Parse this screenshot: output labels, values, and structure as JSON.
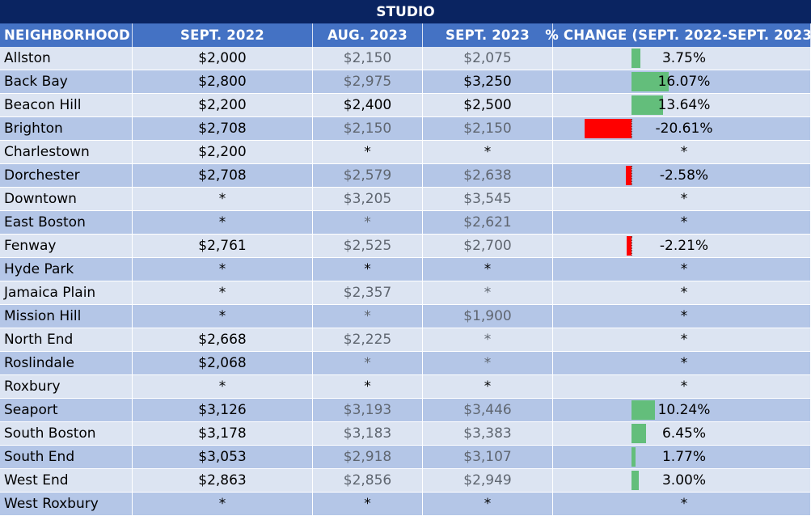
{
  "chart_data": {
    "type": "table",
    "title": "STUDIO",
    "columns": [
      "NEIGHBORHOOD",
      "SEPT. 2022",
      "AUG. 2023",
      "SEPT. 2023",
      "% CHANGE (SEPT. 2022-SEPT. 2023)"
    ],
    "rows": [
      {
        "neighborhood": "Allston",
        "sept_2022": "$2,000",
        "aug_2023": "$2,150",
        "sept_2023": "$2,075",
        "pct_change": "3.75%",
        "pct_value": 3.75,
        "aug_muted": true,
        "sept23_muted": true
      },
      {
        "neighborhood": "Back Bay",
        "sept_2022": "$2,800",
        "aug_2023": "$2,975",
        "sept_2023": "$3,250",
        "pct_change": "16.07%",
        "pct_value": 16.07,
        "aug_muted": true,
        "sept23_muted": false
      },
      {
        "neighborhood": "Beacon Hill",
        "sept_2022": "$2,200",
        "aug_2023": "$2,400",
        "sept_2023": "$2,500",
        "pct_change": "13.64%",
        "pct_value": 13.64,
        "aug_muted": false,
        "sept23_muted": false
      },
      {
        "neighborhood": "Brighton",
        "sept_2022": "$2,708",
        "aug_2023": "$2,150",
        "sept_2023": "$2,150",
        "pct_change": "-20.61%",
        "pct_value": -20.61,
        "aug_muted": true,
        "sept23_muted": true
      },
      {
        "neighborhood": "Charlestown",
        "sept_2022": "$2,200",
        "aug_2023": "*",
        "sept_2023": "*",
        "pct_change": "*",
        "pct_value": null,
        "aug_muted": false,
        "sept23_muted": false
      },
      {
        "neighborhood": "Dorchester",
        "sept_2022": "$2,708",
        "aug_2023": "$2,579",
        "sept_2023": "$2,638",
        "pct_change": "-2.58%",
        "pct_value": -2.58,
        "aug_muted": true,
        "sept23_muted": true
      },
      {
        "neighborhood": "Downtown",
        "sept_2022": "*",
        "aug_2023": "$3,205",
        "sept_2023": "$3,545",
        "pct_change": "*",
        "pct_value": null,
        "aug_muted": true,
        "sept23_muted": true
      },
      {
        "neighborhood": "East Boston",
        "sept_2022": "*",
        "aug_2023": "*",
        "sept_2023": "$2,621",
        "pct_change": "*",
        "pct_value": null,
        "aug_muted": true,
        "sept23_muted": true
      },
      {
        "neighborhood": "Fenway",
        "sept_2022": "$2,761",
        "aug_2023": "$2,525",
        "sept_2023": "$2,700",
        "pct_change": "-2.21%",
        "pct_value": -2.21,
        "aug_muted": true,
        "sept23_muted": true
      },
      {
        "neighborhood": "Hyde Park",
        "sept_2022": "*",
        "aug_2023": "*",
        "sept_2023": "*",
        "pct_change": "*",
        "pct_value": null,
        "aug_muted": false,
        "sept23_muted": false
      },
      {
        "neighborhood": "Jamaica Plain",
        "sept_2022": "*",
        "aug_2023": "$2,357",
        "sept_2023": "*",
        "pct_change": "*",
        "pct_value": null,
        "aug_muted": true,
        "sept23_muted": true
      },
      {
        "neighborhood": "Mission Hill",
        "sept_2022": "*",
        "aug_2023": "*",
        "sept_2023": "$1,900",
        "pct_change": "*",
        "pct_value": null,
        "aug_muted": true,
        "sept23_muted": true
      },
      {
        "neighborhood": "North End",
        "sept_2022": "$2,668",
        "aug_2023": "$2,225",
        "sept_2023": "*",
        "pct_change": "*",
        "pct_value": null,
        "aug_muted": true,
        "sept23_muted": true
      },
      {
        "neighborhood": "Roslindale",
        "sept_2022": "$2,068",
        "aug_2023": "*",
        "sept_2023": "*",
        "pct_change": "*",
        "pct_value": null,
        "aug_muted": true,
        "sept23_muted": true
      },
      {
        "neighborhood": "Roxbury",
        "sept_2022": "*",
        "aug_2023": "*",
        "sept_2023": "*",
        "pct_change": "*",
        "pct_value": null,
        "aug_muted": false,
        "sept23_muted": false
      },
      {
        "neighborhood": "Seaport",
        "sept_2022": "$3,126",
        "aug_2023": "$3,193",
        "sept_2023": "$3,446",
        "pct_change": "10.24%",
        "pct_value": 10.24,
        "aug_muted": true,
        "sept23_muted": true
      },
      {
        "neighborhood": "South Boston",
        "sept_2022": "$3,178",
        "aug_2023": "$3,183",
        "sept_2023": "$3,383",
        "pct_change": "6.45%",
        "pct_value": 6.45,
        "aug_muted": true,
        "sept23_muted": true
      },
      {
        "neighborhood": "South End",
        "sept_2022": "$3,053",
        "aug_2023": "$2,918",
        "sept_2023": "$3,107",
        "pct_change": "1.77%",
        "pct_value": 1.77,
        "aug_muted": true,
        "sept23_muted": true
      },
      {
        "neighborhood": "West End",
        "sept_2022": "$2,863",
        "aug_2023": "$2,856",
        "sept_2023": "$2,949",
        "pct_change": "3.00%",
        "pct_value": 3.0,
        "aug_muted": true,
        "sept23_muted": true
      },
      {
        "neighborhood": "West Roxbury",
        "sept_2022": "*",
        "aug_2023": "*",
        "sept_2023": "*",
        "pct_change": "*",
        "pct_value": null,
        "aug_muted": false,
        "sept23_muted": false
      }
    ],
    "colors": {
      "title_bg": "#0a2461",
      "header_bg": "#4472c4",
      "row_dark": "#b4c6e7",
      "row_light": "#dce4f2",
      "positive_bar": "#63be7b",
      "negative_bar": "#ff0000",
      "muted_text": "#5f6670"
    }
  }
}
